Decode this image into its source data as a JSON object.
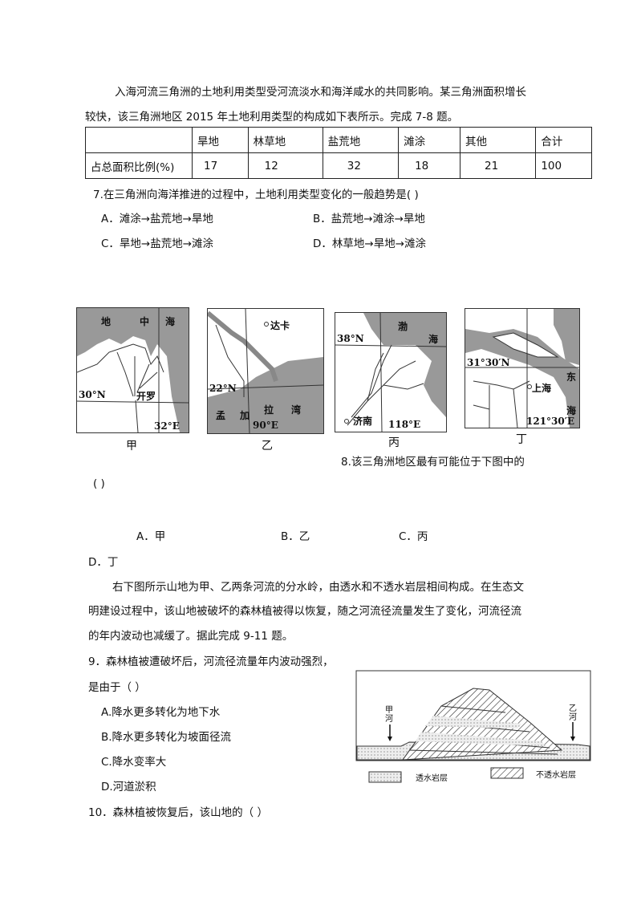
{
  "intro": {
    "line1": "入海河流三角洲的土地利用类型受河流淡水和海洋咸水的共同影响。某三角洲面积增长",
    "line2": "较快，该三角洲地区 2015 年土地利用类型的构成如下表所示。完成 7-8 题。"
  },
  "table": {
    "headers": [
      "",
      "旱地",
      "林草地",
      "盐荒地",
      "滩涂",
      "其他",
      "合计"
    ],
    "row": [
      "占总面积比例(%)",
      "17",
      "12",
      "32",
      "18",
      "21",
      "100"
    ]
  },
  "q7": {
    "stem": "7.在三角洲向海洋推进的过程中，土地利用类型变化的一般趋势是(   )",
    "options": [
      "A．滩涂→盐荒地→旱地",
      "B．盐荒地→滩涂→旱地",
      "C．旱地→盐荒地→滩涂",
      "D．林草地→旱地→滩涂"
    ]
  },
  "maps": [
    {
      "caption": "甲",
      "labels": [
        "地",
        "中",
        "海",
        "30°N",
        "开罗",
        "32°E"
      ]
    },
    {
      "caption": "乙",
      "labels": [
        "达卡",
        "22°N",
        "孟",
        "加",
        "拉",
        "湾",
        "90°E"
      ]
    },
    {
      "caption": "丙",
      "labels": [
        "38°N",
        "渤",
        "海",
        "济南",
        "118°E"
      ]
    },
    {
      "caption": "丁",
      "labels": [
        "31°30′N",
        "东",
        "上海",
        "海",
        "121°30′E"
      ]
    }
  ],
  "q8": {
    "stem": "8.该三角洲地区最有可能位于下图中的",
    "bracket": "(   )",
    "options": [
      "A．甲",
      "B．乙",
      "C．丙",
      "D．丁"
    ]
  },
  "passage": {
    "line1": "右下图所示山地为甲、乙两条河流的分水岭，由透水和不透水岩层相间构成。在生态文",
    "line2": "明建设过程中，该山地被破坏的森林植被得以恢复，随之河流径流量发生了变化，河流径流",
    "line3": "的年内波动也减缓了。据此完成 9-11 题。"
  },
  "q9": {
    "stem1": "9．森林植被遭破坏后，河流径流量年内波动强烈，",
    "stem2": "是由于（     ）",
    "options": [
      "A.降水更多转化为地下水",
      "B.降水更多转化为坡面径流",
      "C.降水变率大",
      "D.河道淤积"
    ]
  },
  "diagram": {
    "river_left": "甲河",
    "river_right": "乙河",
    "legend_permeable": "透水岩层",
    "legend_impermeable": "不透水岩层"
  },
  "q10": {
    "stem": "10．森林植被恢复后，该山地的（     ）"
  }
}
